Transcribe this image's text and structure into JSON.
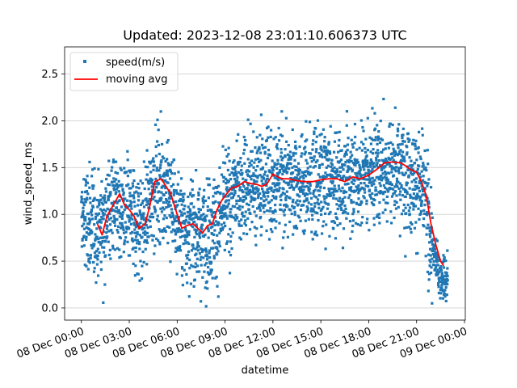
{
  "chart_data": {
    "type": "scatter",
    "title": "Updated: 2023-12-08 23:01:10.606373 UTC",
    "xlabel": "datetime",
    "ylabel": "wind_speed_ms",
    "x_unit": "hours",
    "xlim": [
      -1.05,
      24.05
    ],
    "ylim": [
      -0.13,
      2.79
    ],
    "grid": "horizontal",
    "legend_position": "top-left",
    "x_ticks": [
      {
        "value": 0,
        "label": "08 Dec 00:00"
      },
      {
        "value": 3,
        "label": "08 Dec 03:00"
      },
      {
        "value": 6,
        "label": "08 Dec 06:00"
      },
      {
        "value": 9,
        "label": "08 Dec 09:00"
      },
      {
        "value": 12,
        "label": "08 Dec 12:00"
      },
      {
        "value": 15,
        "label": "08 Dec 15:00"
      },
      {
        "value": 18,
        "label": "08 Dec 18:00"
      },
      {
        "value": 21,
        "label": "08 Dec 21:00"
      },
      {
        "value": 24,
        "label": "09 Dec 00:00"
      }
    ],
    "y_ticks": [
      {
        "value": 0.0,
        "label": "0.0"
      },
      {
        "value": 0.5,
        "label": "0.5"
      },
      {
        "value": 1.0,
        "label": "1.0"
      },
      {
        "value": 1.5,
        "label": "1.5"
      },
      {
        "value": 2.0,
        "label": "2.0"
      },
      {
        "value": 2.5,
        "label": "2.5"
      }
    ],
    "scatter_series": {
      "name": "speed(m/s)",
      "color": "#1f77b4",
      "x_range": [
        0.0,
        22.95
      ],
      "approx_point_count": 2750,
      "trend_x": [
        0,
        1,
        1.5,
        2.0,
        2.5,
        3.0,
        3.5,
        4.0,
        4.5,
        5.0,
        5.5,
        6.0,
        6.5,
        7.0,
        7.5,
        8.0,
        8.5,
        9.0,
        9.5,
        10,
        11,
        12,
        13,
        14,
        15,
        16,
        17,
        18,
        19,
        20,
        21,
        21.5,
        22.0,
        22.5,
        22.95
      ],
      "trend_y": [
        0.95,
        0.85,
        0.95,
        1.15,
        1.05,
        1.0,
        0.9,
        0.95,
        1.3,
        1.35,
        1.2,
        0.95,
        0.85,
        0.85,
        0.8,
        0.85,
        0.9,
        1.05,
        1.2,
        1.3,
        1.35,
        1.35,
        1.4,
        1.35,
        1.35,
        1.35,
        1.4,
        1.45,
        1.5,
        1.5,
        1.35,
        1.2,
        0.6,
        0.35,
        0.3
      ],
      "spread": 0.4
    },
    "series": [
      {
        "name": "moving avg",
        "color": "#ff0000",
        "x": [
          1.0,
          1.3,
          1.6,
          2.0,
          2.4,
          2.7,
          3.0,
          3.3,
          3.6,
          4.0,
          4.3,
          4.6,
          5.0,
          5.3,
          5.6,
          6.0,
          6.3,
          6.6,
          7.0,
          7.3,
          7.6,
          7.9,
          8.2,
          8.5,
          8.8,
          9.1,
          9.4,
          9.8,
          10.2,
          10.6,
          11.0,
          11.3,
          11.6,
          12.0,
          12.3,
          12.6,
          13.0,
          13.5,
          14.0,
          14.5,
          15.0,
          15.5,
          16.0,
          16.5,
          17.0,
          17.5,
          18.0,
          18.5,
          19.0,
          19.5,
          20.0,
          20.3,
          20.6,
          21.0,
          21.3,
          21.6,
          21.9,
          22.2,
          22.5,
          22.7
        ],
        "y": [
          0.9,
          0.78,
          0.98,
          1.1,
          1.22,
          1.1,
          1.05,
          0.98,
          0.85,
          0.9,
          1.1,
          1.35,
          1.38,
          1.3,
          1.22,
          1.0,
          0.85,
          0.88,
          0.9,
          0.85,
          0.8,
          0.88,
          0.9,
          1.05,
          1.15,
          1.22,
          1.28,
          1.3,
          1.35,
          1.33,
          1.32,
          1.3,
          1.32,
          1.43,
          1.4,
          1.38,
          1.38,
          1.36,
          1.35,
          1.35,
          1.37,
          1.38,
          1.38,
          1.35,
          1.4,
          1.38,
          1.42,
          1.48,
          1.55,
          1.56,
          1.55,
          1.52,
          1.48,
          1.45,
          1.35,
          1.2,
          0.9,
          0.68,
          0.5,
          0.45
        ]
      }
    ]
  }
}
